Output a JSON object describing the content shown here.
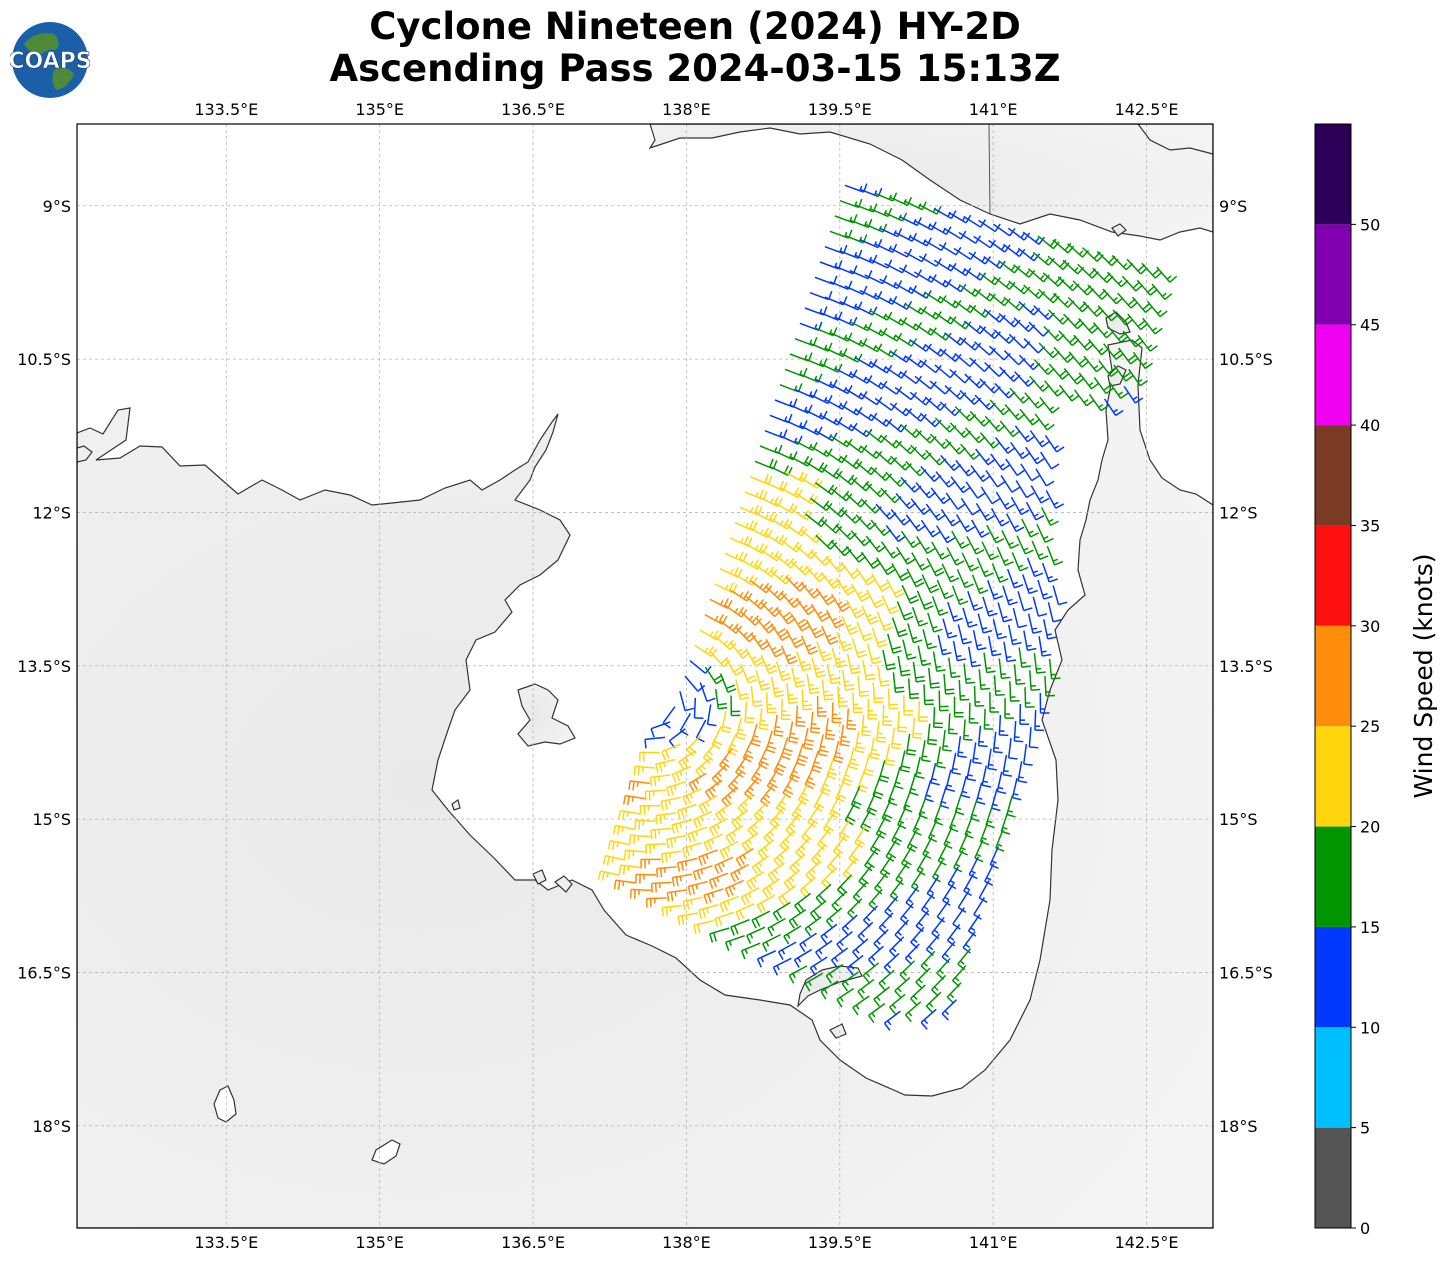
{
  "title": {
    "line1": "Cyclone Nineteen (2024) HY-2D",
    "line2": "Ascending Pass 2024-03-15 15:13Z"
  },
  "logo": {
    "text": "COAPS"
  },
  "map": {
    "lon_labels": [
      "133.5°E",
      "135°E",
      "136.5°E",
      "138°E",
      "139.5°E",
      "141°E",
      "142.5°E"
    ],
    "lat_labels": [
      "9°S",
      "10.5°S",
      "12°S",
      "13.5°S",
      "15°S",
      "16.5°S",
      "18°S"
    ],
    "lon_values": [
      133.5,
      135,
      136.5,
      138,
      139.5,
      141,
      142.5
    ],
    "lat_values": [
      -9,
      -10.5,
      -12,
      -13.5,
      -15,
      -16.5,
      -18
    ],
    "lon_range": [
      132.04,
      143.15
    ],
    "lat_range": [
      -19.0,
      -8.2
    ],
    "grid": true,
    "coastline_color": "#333333",
    "land_color": "#eeeeee",
    "ocean_color": "#ffffff"
  },
  "colorbar": {
    "label": "Wind Speed (knots)",
    "ticks": [
      "0",
      "5",
      "10",
      "15",
      "20",
      "25",
      "30",
      "35",
      "40",
      "45",
      "50"
    ],
    "bins": [
      {
        "min": 0,
        "max": 5,
        "color": "#555555"
      },
      {
        "min": 5,
        "max": 10,
        "color": "#00bfff"
      },
      {
        "min": 10,
        "max": 15,
        "color": "#0039ff"
      },
      {
        "min": 15,
        "max": 20,
        "color": "#009600"
      },
      {
        "min": 20,
        "max": 25,
        "color": "#ffd60e"
      },
      {
        "min": 25,
        "max": 30,
        "color": "#ff8c0a"
      },
      {
        "min": 30,
        "max": 35,
        "color": "#ff1010"
      },
      {
        "min": 35,
        "max": 40,
        "color": "#7a3a24"
      },
      {
        "min": 40,
        "max": 45,
        "color": "#f000f0"
      },
      {
        "min": 45,
        "max": 50,
        "color": "#8000b0"
      },
      {
        "min": 50,
        "max": 55,
        "color": "#2c0058"
      }
    ]
  }
}
